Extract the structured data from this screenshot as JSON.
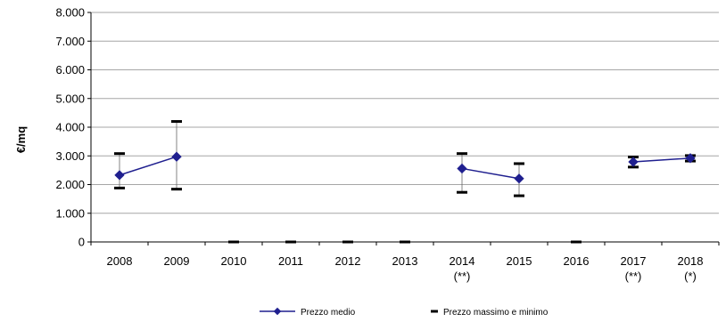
{
  "chart_data": {
    "type": "line",
    "ylabel": "€/mq",
    "ylim": [
      0,
      8000
    ],
    "yticks": [
      "0",
      "1.000",
      "2.000",
      "3.000",
      "4.000",
      "5.000",
      "6.000",
      "7.000",
      "8.000"
    ],
    "categories": [
      "2008",
      "2009",
      "2010",
      "2011",
      "2012",
      "2013",
      "2014",
      "2015",
      "2016",
      "2017",
      "2018"
    ],
    "category_notes": [
      "",
      "",
      "",
      "",
      "",
      "",
      "(**)",
      "",
      "",
      "(**)",
      "(*)"
    ],
    "grid": true,
    "legend_position": "bottom",
    "colors": {
      "series": "#1f1f8f",
      "marker": "#000000",
      "grid": "#a6a6a6"
    },
    "series": [
      {
        "name": "Prezzo medio",
        "values": [
          2330,
          2970,
          null,
          null,
          null,
          null,
          2560,
          2210,
          null,
          2790,
          2920
        ]
      },
      {
        "name": "Prezzo massimo e minimo",
        "max": [
          3080,
          4200,
          0,
          0,
          0,
          0,
          3080,
          2730,
          0,
          2960,
          3010
        ],
        "min": [
          1880,
          1840,
          0,
          0,
          0,
          0,
          1730,
          1610,
          0,
          2610,
          2820
        ]
      }
    ]
  }
}
